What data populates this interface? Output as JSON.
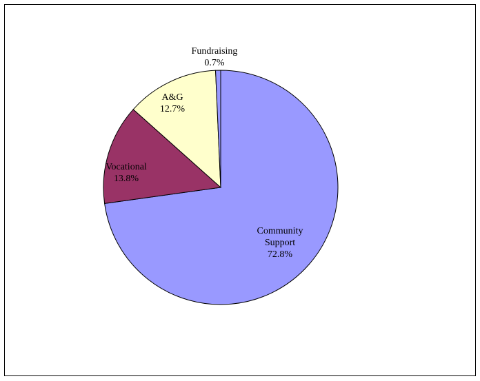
{
  "chart_data": {
    "type": "pie",
    "title": "",
    "start_angle_deg": 0,
    "direction": "clockwise",
    "slices": [
      {
        "label_lines": [
          "Community",
          "Support"
        ],
        "value": 72.8,
        "value_label": "72.8%",
        "color": "#9999ff"
      },
      {
        "label_lines": [
          "Vocational"
        ],
        "value": 13.8,
        "value_label": "13.8%",
        "color": "#993366"
      },
      {
        "label_lines": [
          "A&G"
        ],
        "value": 12.7,
        "value_label": "12.7%",
        "color": "#ffffcc"
      },
      {
        "label_lines": [
          "Fundraising"
        ],
        "value": 0.7,
        "value_label": "0.7%",
        "color": "#9999ff"
      }
    ],
    "legend": "none"
  }
}
